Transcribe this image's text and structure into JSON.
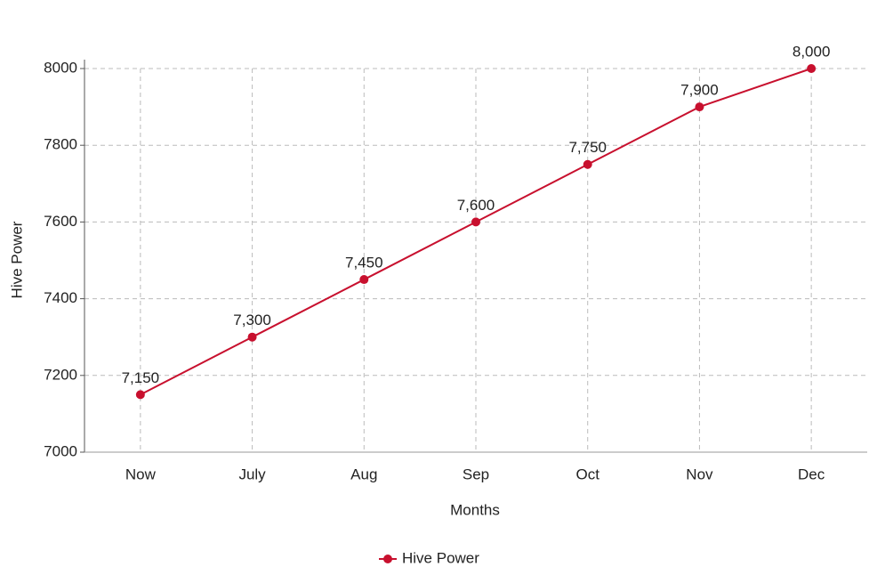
{
  "chart_data": {
    "type": "line",
    "x_label": "Months",
    "y_label": "Hive Power",
    "categories": [
      "Now",
      "July",
      "Aug",
      "Sep",
      "Oct",
      "Nov",
      "Dec"
    ],
    "series": [
      {
        "name": "Hive Power",
        "color": "#c8102e",
        "values": [
          7150,
          7300,
          7450,
          7600,
          7750,
          7900,
          8000
        ],
        "value_labels": [
          "7,150",
          "7,300",
          "7,450",
          "7,600",
          "7,750",
          "7,900",
          "8,000"
        ]
      }
    ],
    "ylim": [
      7000,
      8000
    ],
    "yticks": [
      7000,
      7200,
      7400,
      7600,
      7800,
      8000
    ],
    "grid": true,
    "legend": "bottom"
  }
}
